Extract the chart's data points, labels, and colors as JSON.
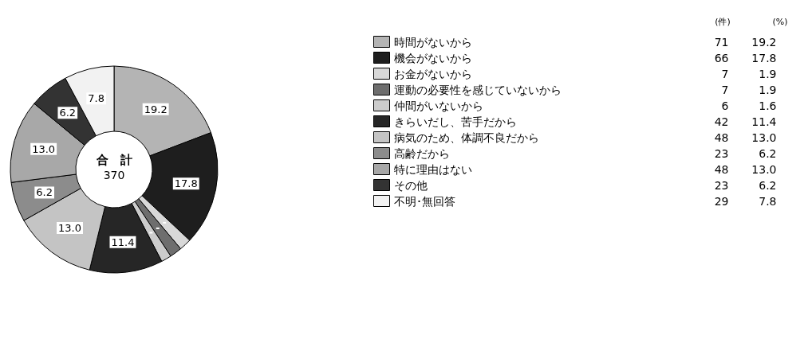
{
  "chart_data": {
    "type": "donut",
    "categories": [
      "時間がないから",
      "機会がないから",
      "お金がないから",
      "運動の必要性を感じていないから",
      "仲間がいないから",
      "きらいだし、苦手だから",
      "病気のため、体調不良だから",
      "高齢だから",
      "特に理由はない",
      "その他",
      "不明･無回答"
    ],
    "values": [
      19.2,
      17.8,
      1.9,
      1.9,
      1.6,
      11.4,
      13.0,
      6.2,
      13.0,
      6.2,
      7.8
    ],
    "value_labels": [
      "19.2",
      "17.8",
      "1.9",
      "1.9",
      "1.6",
      "11.4",
      "13.0",
      "6.2",
      "13.0",
      "6.2",
      "7.8"
    ],
    "colors": [
      "#b4b4b4",
      "#1e1e1e",
      "#d8d8d8",
      "#6e6e6e",
      "#cccccc",
      "#262626",
      "#c4c4c4",
      "#8c8c8c",
      "#a8a8a8",
      "#333333",
      "#f2f2f2"
    ],
    "legend": "right",
    "annotations": [
      "合　計",
      "370",
      "(件)",
      "(%)",
      "71",
      "66",
      "7",
      "7",
      "6",
      "42",
      "48",
      "23",
      "48",
      "23",
      "29"
    ]
  }
}
